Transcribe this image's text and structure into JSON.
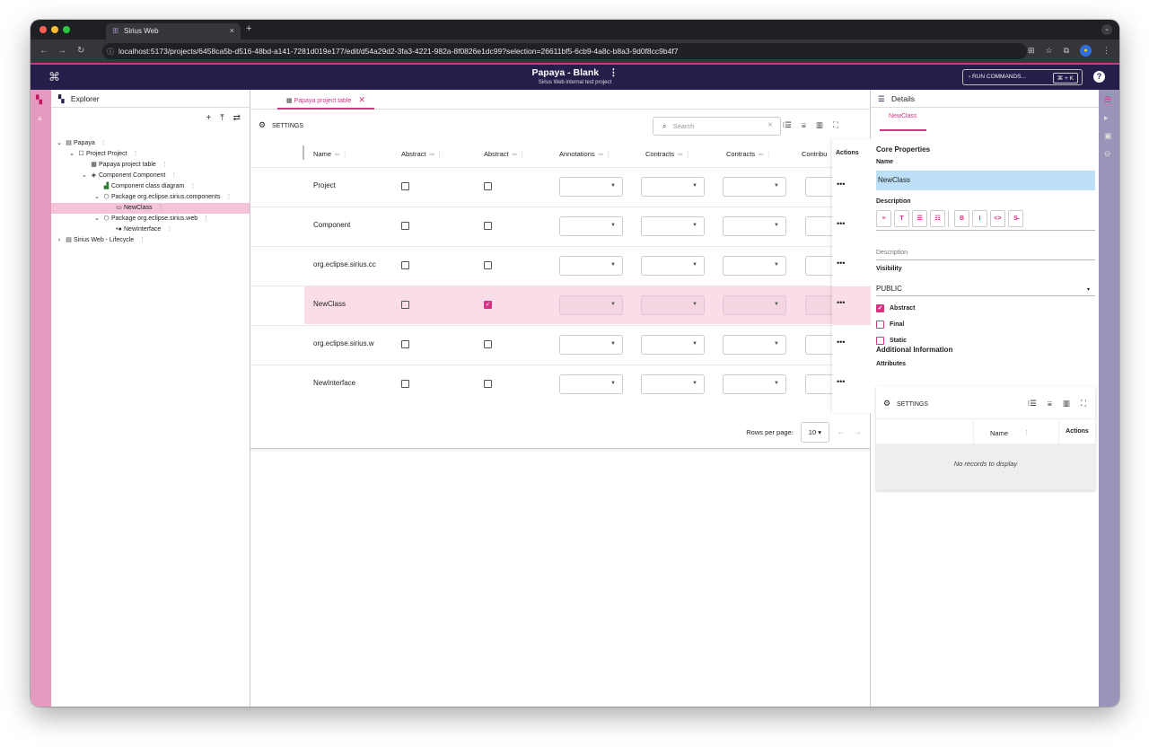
{
  "browser": {
    "tab_title": "Sirius Web",
    "tab_close": "×",
    "new_tab": "+",
    "url": "localhost:5173/projects/6458ca5b-d516-48bd-a141-7281d019e177/edit/d54a29d2-3fa3-4221-982a-8f0826e1dc99?selection=26611bf5-6cb9-4a8c-b8a3-9d0f8cc9b4f7"
  },
  "app": {
    "project_title": "Papaya - Blank",
    "project_subtitle": "Sirius Web internal test project",
    "run_commands_label": "RUN COMMANDS...",
    "shortcut": "⌘ + K",
    "help": "?"
  },
  "explorer": {
    "title": "Explorer",
    "tree": [
      {
        "label": "Papaya",
        "level": 0,
        "toggle": "⌄",
        "icon": "▤"
      },
      {
        "label": "Project Project",
        "level": 1,
        "toggle": "⌄",
        "icon": "☐"
      },
      {
        "label": "Papaya project table",
        "level": 2,
        "toggle": "",
        "icon": "▦"
      },
      {
        "label": "Component Component",
        "level": 2,
        "toggle": "⌄",
        "icon": "◈"
      },
      {
        "label": "Component class diagram",
        "level": 3,
        "toggle": "",
        "icon": "▟"
      },
      {
        "label": "Package org.eclipse.sirius.components",
        "level": 3,
        "toggle": "⌄",
        "icon": "⬡"
      },
      {
        "label": "NewClass",
        "level": 4,
        "toggle": "",
        "icon": "▭",
        "selected": true
      },
      {
        "label": "Package org.eclipse.sirius.web",
        "level": 3,
        "toggle": "⌄",
        "icon": "⬡"
      },
      {
        "label": "NewInterface",
        "level": 4,
        "toggle": "",
        "icon": "•●"
      },
      {
        "label": "Sirius Web - Lifecycle",
        "level": 0,
        "toggle": "›",
        "icon": "▤"
      }
    ]
  },
  "editor": {
    "tab_label": "Papaya project table",
    "settings_label": "SETTINGS",
    "search_placeholder": "Search",
    "columns": [
      "Name",
      "Abstract",
      "Abstract",
      "Annotations",
      "Contracts",
      "Contracts",
      "Contribu",
      "Actions"
    ],
    "rows": [
      {
        "name": "Project",
        "abstract1": false,
        "abstract2": false,
        "highlight": false
      },
      {
        "name": "Component",
        "abstract1": false,
        "abstract2": false,
        "highlight": false
      },
      {
        "name": "org.eclipse.sirius.cc",
        "abstract1": false,
        "abstract2": false,
        "highlight": false
      },
      {
        "name": "NewClass",
        "abstract1": false,
        "abstract2": true,
        "highlight": true
      },
      {
        "name": "org.eclipse.sirius.w",
        "abstract1": false,
        "abstract2": false,
        "highlight": false
      },
      {
        "name": "NewInterface",
        "abstract1": false,
        "abstract2": false,
        "highlight": false
      }
    ],
    "rows_per_page_label": "Rows per page:",
    "rows_per_page_value": "10"
  },
  "details": {
    "title": "Details",
    "tab": "NewClass",
    "core_properties": "Core Properties",
    "name_label": "Name",
    "name_value": "NewClass",
    "description_label": "Description",
    "toolbar": [
      "≡",
      "T",
      "☰",
      "☷",
      "B",
      "I",
      "<>",
      "S̶"
    ],
    "description_placeholder": "Description",
    "visibility_label": "Visibility",
    "visibility_value": "PUBLIC",
    "checkboxes": [
      {
        "label": "Abstract",
        "checked": true
      },
      {
        "label": "Final",
        "checked": false
      },
      {
        "label": "Static",
        "checked": false
      }
    ],
    "additional_information": "Additional Information",
    "attributes_label": "Attributes",
    "attrs_settings": "SETTINGS",
    "attrs_name_col": "Name",
    "attrs_actions_col": "Actions",
    "no_records": "No records to display"
  },
  "colors": {
    "accent": "#d63384",
    "header": "#261e4a",
    "left_rail": "#e59ac0",
    "right_rail": "#9b93b8"
  }
}
